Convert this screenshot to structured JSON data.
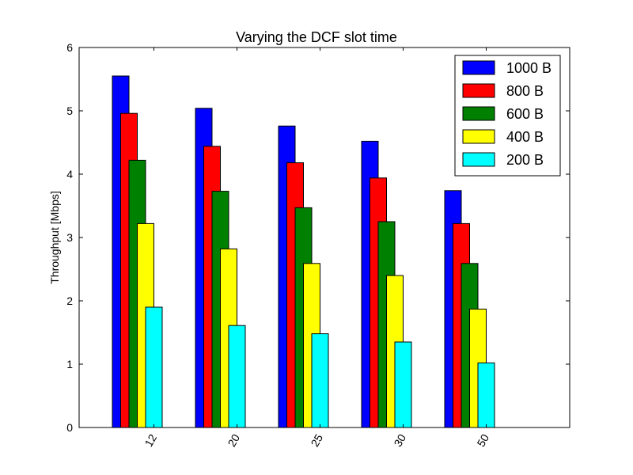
{
  "chart_data": {
    "type": "bar",
    "title": "Varying the DCF slot time",
    "xlabel": "",
    "ylabel": "Throughput [Mbps]",
    "categories": [
      "12",
      "20",
      "25",
      "30",
      "50"
    ],
    "ylim": [
      0,
      6
    ],
    "yticks": [
      "0",
      "1",
      "2",
      "3",
      "4",
      "5",
      "6"
    ],
    "grid": false,
    "legend_position": "top-right",
    "series": [
      {
        "name": "1000 B",
        "color": "#0000ff",
        "values": [
          5.55,
          5.04,
          4.76,
          4.52,
          3.74
        ]
      },
      {
        "name": "800 B",
        "color": "#ff0000",
        "values": [
          4.96,
          4.44,
          4.18,
          3.94,
          3.22
        ]
      },
      {
        "name": "600 B",
        "color": "#008000",
        "values": [
          4.22,
          3.73,
          3.47,
          3.25,
          2.59
        ]
      },
      {
        "name": "400 B",
        "color": "#ffff00",
        "values": [
          3.22,
          2.82,
          2.59,
          2.4,
          1.87
        ]
      },
      {
        "name": "200 B",
        "color": "#00ffff",
        "values": [
          1.9,
          1.61,
          1.48,
          1.35,
          1.02
        ]
      }
    ]
  }
}
